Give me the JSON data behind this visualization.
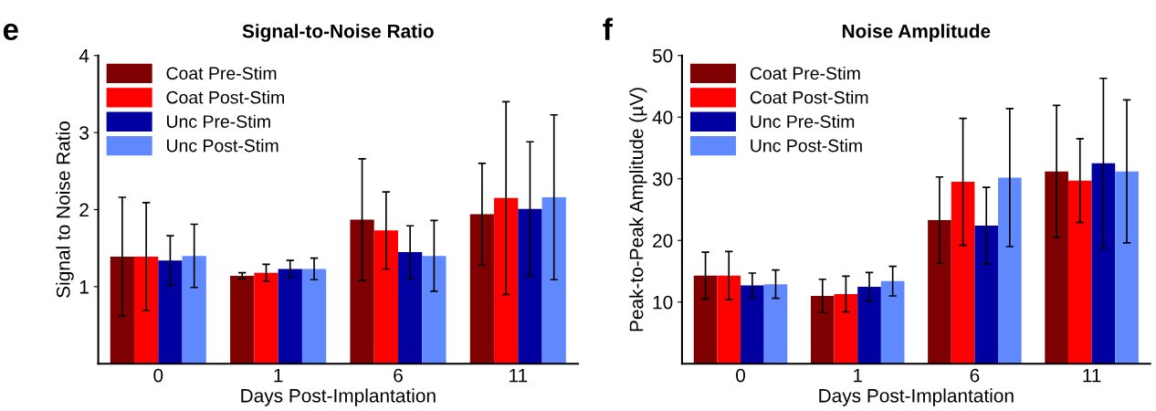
{
  "chart_data": [
    {
      "type": "bar",
      "title": "Signal-to-Noise Ratio",
      "annotations": [
        "e"
      ],
      "xlabel": "Days Post-Implantation",
      "ylabel": "Signal to Noise Ratio",
      "categories": [
        "0",
        "1",
        "6",
        "11"
      ],
      "ylim": [
        0,
        4
      ],
      "yticks": [
        1,
        2,
        3,
        4
      ],
      "legend": "top left",
      "grid": false,
      "series": [
        {
          "name": "Coat Pre-Stim",
          "color": "#7f0000",
          "values": [
            1.39,
            1.14,
            1.87,
            1.94
          ],
          "errors": [
            0.77,
            0.04,
            0.79,
            0.66
          ]
        },
        {
          "name": "Coat Post-Stim",
          "color": "#ff0000",
          "values": [
            1.39,
            1.18,
            1.73,
            2.15
          ],
          "errors": [
            0.7,
            0.11,
            0.5,
            1.25
          ]
        },
        {
          "name": "Unc Pre-Stim",
          "color": "#0000a0",
          "values": [
            1.34,
            1.23,
            1.45,
            2.01
          ],
          "errors": [
            0.32,
            0.11,
            0.34,
            0.87
          ]
        },
        {
          "name": "Unc Post-Stim",
          "color": "#6088ff",
          "values": [
            1.4,
            1.23,
            1.4,
            2.16
          ],
          "errors": [
            0.41,
            0.14,
            0.46,
            1.07
          ]
        }
      ]
    },
    {
      "type": "bar",
      "title": "Noise Amplitude",
      "annotations": [
        "f"
      ],
      "xlabel": "Days Post-Implantation",
      "ylabel": "Peak-to-Peak Amplitude (µV)",
      "categories": [
        "0",
        "1",
        "6",
        "11"
      ],
      "ylim": [
        0,
        50
      ],
      "yticks": [
        10,
        20,
        30,
        40,
        50
      ],
      "legend": "top left",
      "grid": false,
      "series": [
        {
          "name": "Coat Pre-Stim",
          "color": "#7f0000",
          "values": [
            14.3,
            11.0,
            23.3,
            31.2
          ],
          "errors": [
            3.8,
            2.7,
            7.0,
            10.7
          ]
        },
        {
          "name": "Coat Post-Stim",
          "color": "#ff0000",
          "values": [
            14.3,
            11.3,
            29.5,
            29.7
          ],
          "errors": [
            3.9,
            2.9,
            10.3,
            6.8
          ]
        },
        {
          "name": "Unc Pre-Stim",
          "color": "#0000a0",
          "values": [
            12.7,
            12.5,
            22.4,
            32.5
          ],
          "errors": [
            2.0,
            2.3,
            6.2,
            13.8
          ]
        },
        {
          "name": "Unc Post-Stim",
          "color": "#6088ff",
          "values": [
            12.9,
            13.4,
            30.2,
            31.2
          ],
          "errors": [
            2.3,
            2.4,
            11.2,
            11.6
          ]
        }
      ]
    }
  ]
}
